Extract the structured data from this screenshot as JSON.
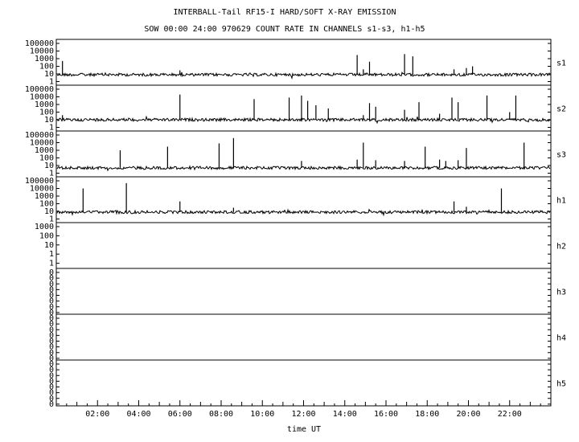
{
  "chart_data": {
    "type": "line",
    "title": "INTERBALL-Tail RF15-I HARD/SOFT X-RAY EMISSION",
    "subtitle": "SOW 00:00 24:00 970629  COUNT RATE IN CHANNELS s1-s3, h1-h5",
    "xlabel": "time UT",
    "xlim": [
      0,
      24
    ],
    "x_ticks": [
      "02:00",
      "04:00",
      "06:00",
      "08:00",
      "10:00",
      "12:00",
      "14:00",
      "16:00",
      "18:00",
      "20:00",
      "22:00"
    ],
    "grid": false,
    "panels": [
      {
        "name": "s1",
        "scale": "log",
        "ylim": [
          1,
          100000
        ],
        "y_ticks": [
          "100000",
          "10000",
          "1000",
          "100",
          "10",
          "1"
        ],
        "baseline": 8,
        "spikes": [
          {
            "t": 0.3,
            "v": 500
          },
          {
            "t": 6.0,
            "v": 30
          },
          {
            "t": 14.6,
            "v": 3000
          },
          {
            "t": 14.9,
            "v": 40
          },
          {
            "t": 15.2,
            "v": 400
          },
          {
            "t": 16.9,
            "v": 4000
          },
          {
            "t": 17.3,
            "v": 2000
          },
          {
            "t": 19.3,
            "v": 40
          },
          {
            "t": 19.9,
            "v": 60
          },
          {
            "t": 20.2,
            "v": 100
          }
        ]
      },
      {
        "name": "s2",
        "scale": "log",
        "ylim": [
          1,
          100000
        ],
        "y_ticks": [
          "100000",
          "10000",
          "1000",
          "100",
          "10",
          "1"
        ],
        "baseline": 10,
        "spikes": [
          {
            "t": 0.3,
            "v": 40
          },
          {
            "t": 6.0,
            "v": 20000
          },
          {
            "t": 9.6,
            "v": 5000
          },
          {
            "t": 11.3,
            "v": 8000
          },
          {
            "t": 11.9,
            "v": 15000
          },
          {
            "t": 12.2,
            "v": 3000
          },
          {
            "t": 12.6,
            "v": 800
          },
          {
            "t": 13.2,
            "v": 300
          },
          {
            "t": 14.9,
            "v": 40
          },
          {
            "t": 15.2,
            "v": 1500
          },
          {
            "t": 15.5,
            "v": 500
          },
          {
            "t": 16.9,
            "v": 200
          },
          {
            "t": 17.6,
            "v": 2000
          },
          {
            "t": 18.6,
            "v": 60
          },
          {
            "t": 19.2,
            "v": 8000
          },
          {
            "t": 19.5,
            "v": 2000
          },
          {
            "t": 20.9,
            "v": 15000
          },
          {
            "t": 22.0,
            "v": 100
          },
          {
            "t": 22.3,
            "v": 15000
          }
        ]
      },
      {
        "name": "s3",
        "scale": "log",
        "ylim": [
          1,
          100000
        ],
        "y_ticks": [
          "100000",
          "10000",
          "1000",
          "100",
          "10",
          "1"
        ],
        "baseline": 5,
        "spikes": [
          {
            "t": 3.1,
            "v": 1000
          },
          {
            "t": 5.4,
            "v": 3000
          },
          {
            "t": 7.9,
            "v": 8000
          },
          {
            "t": 8.6,
            "v": 40000
          },
          {
            "t": 11.9,
            "v": 40
          },
          {
            "t": 14.6,
            "v": 60
          },
          {
            "t": 14.9,
            "v": 10000
          },
          {
            "t": 15.5,
            "v": 50
          },
          {
            "t": 16.9,
            "v": 40
          },
          {
            "t": 17.9,
            "v": 3000
          },
          {
            "t": 18.6,
            "v": 60
          },
          {
            "t": 18.9,
            "v": 40
          },
          {
            "t": 19.5,
            "v": 50
          },
          {
            "t": 19.9,
            "v": 2000
          },
          {
            "t": 22.7,
            "v": 10000
          }
        ]
      },
      {
        "name": "h1",
        "scale": "log",
        "ylim": [
          1,
          100000
        ],
        "y_ticks": [
          "100000",
          "10000",
          "1000",
          "100",
          "10",
          "1"
        ],
        "baseline": 8,
        "spikes": [
          {
            "t": 1.3,
            "v": 10000
          },
          {
            "t": 3.4,
            "v": 50000
          },
          {
            "t": 6.0,
            "v": 200
          },
          {
            "t": 8.6,
            "v": 30
          },
          {
            "t": 19.3,
            "v": 200
          },
          {
            "t": 19.9,
            "v": 40
          },
          {
            "t": 21.6,
            "v": 10000
          }
        ]
      },
      {
        "name": "h2",
        "scale": "log",
        "ylim": [
          0.1,
          1000
        ],
        "y_ticks": [
          "1000",
          "100",
          "10",
          "1",
          "1"
        ],
        "baseline": null,
        "spikes": []
      },
      {
        "name": "h3",
        "scale": "linear",
        "y_ticks": [
          "0",
          "0",
          "0",
          "0",
          "0",
          "0",
          "0",
          "0"
        ],
        "baseline": null,
        "spikes": []
      },
      {
        "name": "h4",
        "scale": "linear",
        "y_ticks": [
          "0",
          "0",
          "0",
          "0",
          "0",
          "0",
          "0",
          "0"
        ],
        "baseline": null,
        "spikes": []
      },
      {
        "name": "h5",
        "scale": "linear",
        "y_ticks": [
          "0",
          "0",
          "0",
          "0",
          "0",
          "0",
          "0",
          "0"
        ],
        "baseline": null,
        "spikes": []
      }
    ]
  }
}
